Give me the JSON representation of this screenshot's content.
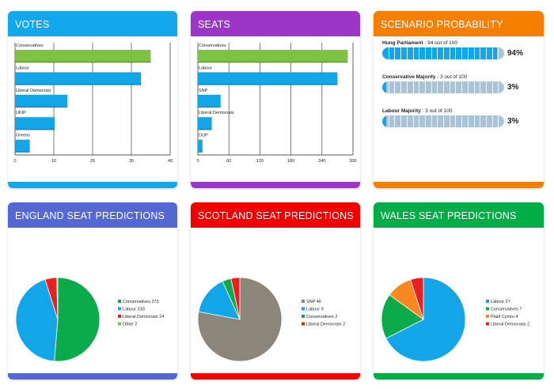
{
  "cards": {
    "votes": {
      "title": "VOTES",
      "color": "#13a8ec"
    },
    "seats": {
      "title": "SEATS",
      "color": "#9b36c8"
    },
    "scenario": {
      "title": "SCENARIO PROBABILITY",
      "color": "#f77f00"
    },
    "england": {
      "title": "ENGLAND SEAT PREDICTIONS",
      "color": "#5468d4"
    },
    "scotland": {
      "title": "SCOTLAND SEAT PREDICTIONS",
      "color": "#f10000"
    },
    "wales": {
      "title": "WALES SEAT PREDICTIONS",
      "color": "#02ad48"
    }
  },
  "scenario": [
    {
      "label": "Hung Parliament",
      "detail": " : 94 out of 100",
      "value": 94,
      "pct": "94%"
    },
    {
      "label": "Conservative Majority",
      "detail": " : 3 out of 100",
      "value": 3,
      "pct": "3%"
    },
    {
      "label": "Labour Majority",
      "detail": " : 3 out of 100",
      "value": 3,
      "pct": "3%"
    }
  ],
  "chart_data": [
    {
      "type": "bar",
      "name": "votes",
      "categories": [
        "Conservatives",
        "Labour",
        "Liberal Democrats",
        "UKIP",
        "Greens"
      ],
      "values": [
        35,
        32.5,
        13.5,
        10.2,
        3.8
      ],
      "colors": [
        "#7dc242",
        "#12a5e8",
        "#12a5e8",
        "#12a5e8",
        "#12a5e8"
      ],
      "xlim": [
        0,
        40
      ],
      "xticks": [
        "0",
        "10",
        "20",
        "30",
        "40"
      ]
    },
    {
      "type": "bar",
      "name": "seats",
      "categories": [
        "Conservatives",
        "Labour",
        "SNP",
        "Liberal Democrats",
        "DUP"
      ],
      "values": [
        290,
        270,
        44,
        27,
        9
      ],
      "colors": [
        "#7dc242",
        "#12a5e8",
        "#12a5e8",
        "#12a5e8",
        "#12a5e8"
      ],
      "xlim": [
        0,
        300
      ],
      "xticks": [
        "0",
        "60",
        "120",
        "180",
        "240",
        "300"
      ]
    },
    {
      "type": "pie",
      "name": "england",
      "labels": [
        "Conservatives 273",
        "Labour 233",
        "Liberal Democrats 24",
        "Other 2"
      ],
      "values": [
        273,
        233,
        24,
        2
      ],
      "colors": [
        "#0bab4b",
        "#12a5e8",
        "#e8201f",
        "#7dc242"
      ]
    },
    {
      "type": "pie",
      "name": "scotland",
      "labels": [
        "SNP 46",
        "Labour 9",
        "Conservatives 2",
        "Liberal Democrats 2"
      ],
      "values": [
        46,
        9,
        2,
        2
      ],
      "colors": [
        "#8c857a",
        "#12a5e8",
        "#0bab4b",
        "#e8201f"
      ]
    },
    {
      "type": "pie",
      "name": "wales",
      "labels": [
        "Labour 27",
        "Conservatives 7",
        "Plaid Cymru 4",
        "Liberal Democrats 2"
      ],
      "values": [
        27,
        7,
        4,
        2
      ],
      "colors": [
        "#12a5e8",
        "#0bab4b",
        "#f7881f",
        "#e8201f"
      ]
    }
  ]
}
